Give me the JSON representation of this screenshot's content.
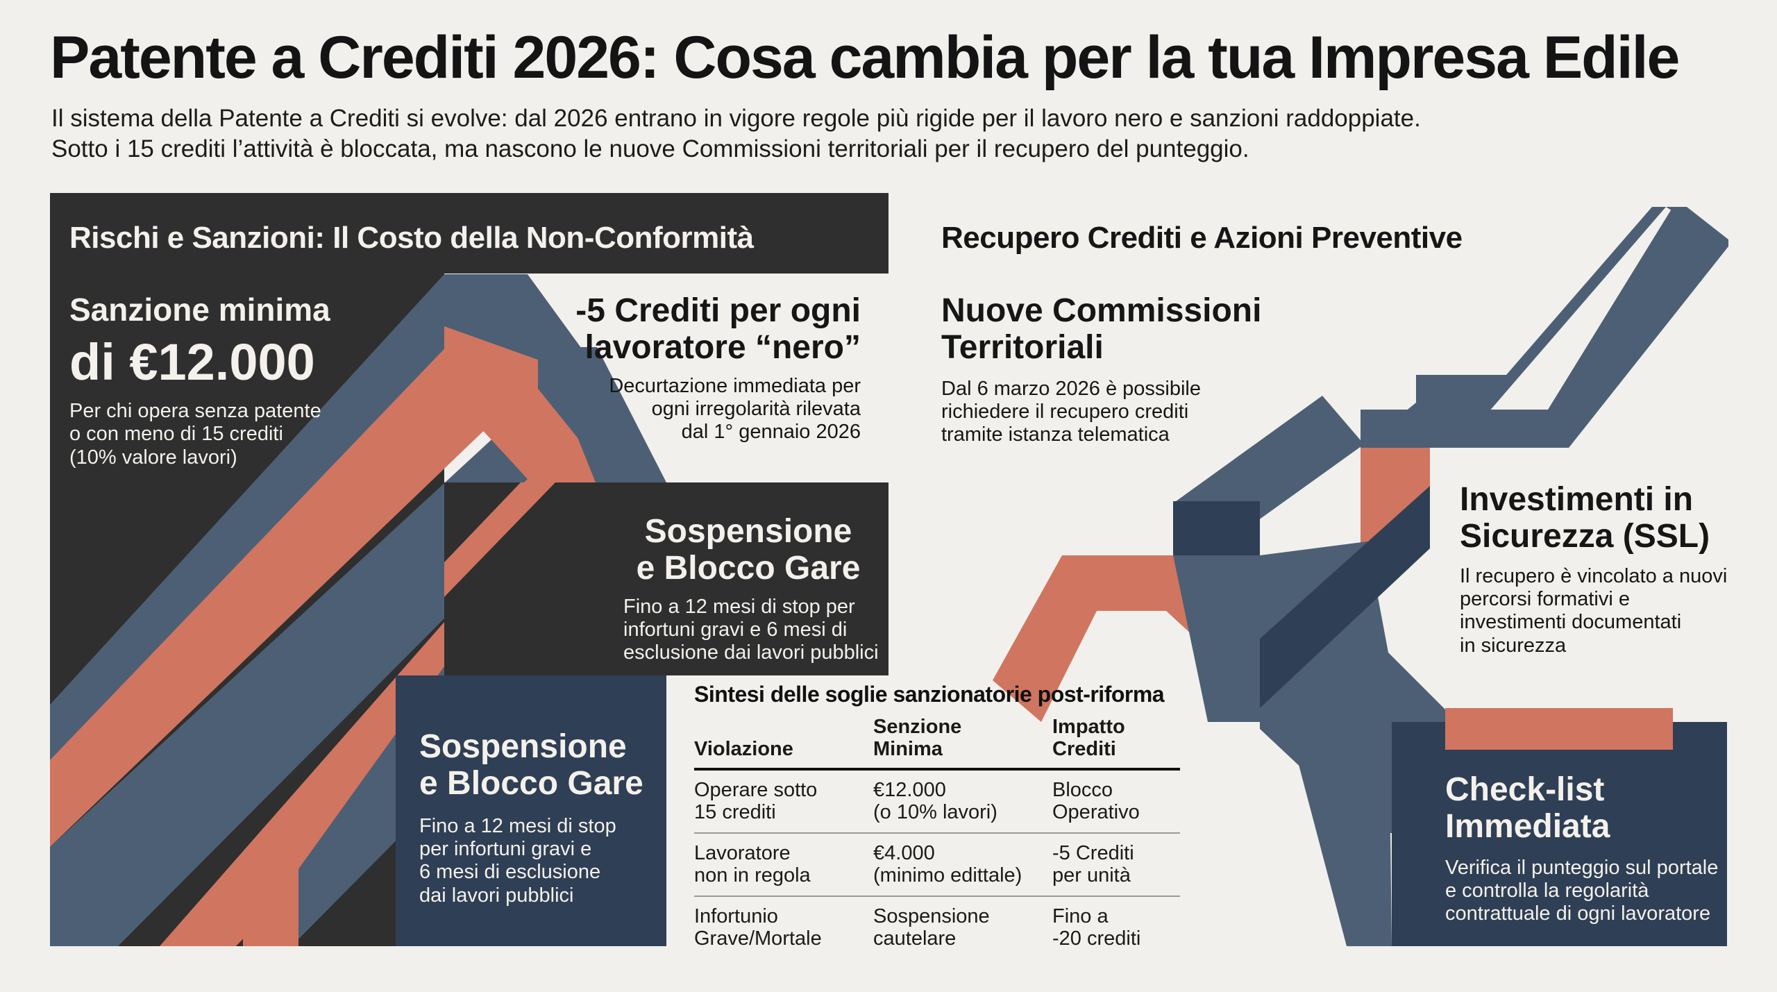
{
  "header": {
    "title": "Patente a Crediti 2026: Cosa cambia per la tua Impresa Edile",
    "subtitle_line1": "Il sistema della Patente a Crediti si evolve: dal 2026 entrano in vigore regole più rigide per il lavoro nero e sanzioni raddoppiate.",
    "subtitle_line2": "Sotto i 15 crediti l’attività è bloccata, ma nascono le nuove Commissioni territoriali per il recupero del punteggio."
  },
  "colors": {
    "charcoal": "#2f2f2f",
    "slate": "#4d5f74",
    "navy": "#2f3f55",
    "coral": "#d07560",
    "background": "#f1f0ec"
  },
  "left_section": {
    "title": "Rischi e Sanzioni: Il Costo della Non-Conformità",
    "sanzione": {
      "label": "Sanzione minima",
      "value": "di €12.000",
      "desc": [
        "Per chi opera senza patente",
        "o con meno di 15 crediti",
        "(10% valore lavori)"
      ]
    },
    "crediti": {
      "title": [
        "-5 Crediti per ogni",
        "lavoratore “nero”"
      ],
      "desc": [
        "Decurtazione immediata per",
        "ogni irregolarità rilevata",
        "dal 1° gennaio 2026"
      ]
    },
    "sospensione_1": {
      "title": [
        "Sospensione",
        "e Blocco Gare"
      ],
      "desc": [
        "Fino a 12 mesi di stop per",
        "infortuni gravi e 6 mesi di",
        "esclusione dai lavori pubblici"
      ]
    },
    "sospensione_2": {
      "title": [
        "Sospensione",
        "e Blocco Gare"
      ],
      "desc": [
        "Fino a 12 mesi di stop",
        "per infortuni gravi e",
        "6 mesi di esclusione",
        "dai lavori pubblici"
      ]
    }
  },
  "table": {
    "title": "Sintesi delle soglie sanzionatorie post-riforma",
    "headers": [
      "Violazione",
      [
        "Senzione",
        "Minima"
      ],
      [
        "Impatto",
        "Crediti"
      ]
    ],
    "rows": [
      [
        [
          "Operare sotto",
          "15 crediti"
        ],
        [
          "€12.000",
          "(o 10% lavori)"
        ],
        [
          "Blocco",
          "Operativo"
        ]
      ],
      [
        [
          "Lavoratore",
          "non in regola"
        ],
        [
          "€4.000",
          "(minimo edittale)"
        ],
        [
          "-5 Crediti",
          "per unità"
        ]
      ],
      [
        [
          "Infortunio",
          "Grave/Mortale"
        ],
        [
          "Sospensione",
          "cautelare"
        ],
        [
          "Fino a",
          "-20 crediti"
        ]
      ]
    ]
  },
  "right_section": {
    "title": "Recupero Crediti e Azioni Preventive",
    "commissioni": {
      "title": [
        "Nuove Commissioni",
        "Territoriali"
      ],
      "desc": [
        "Dal 6 marzo 2026 è possibile",
        "richiedere il recupero crediti",
        "tramite istanza telematica"
      ]
    },
    "investimenti": {
      "title": [
        "Investimenti in",
        "Sicurezza (SSL)"
      ],
      "desc": [
        "Il recupero è vincolato a nuovi",
        "percorsi formativi e",
        "investimenti documentati",
        "in sicurezza"
      ]
    },
    "checklist": {
      "title": [
        "Check-list",
        "Immediata"
      ],
      "desc": [
        "Verifica il punteggio sul portale",
        "e controlla la regolarità",
        "contrattuale di ogni lavoratore"
      ]
    }
  }
}
